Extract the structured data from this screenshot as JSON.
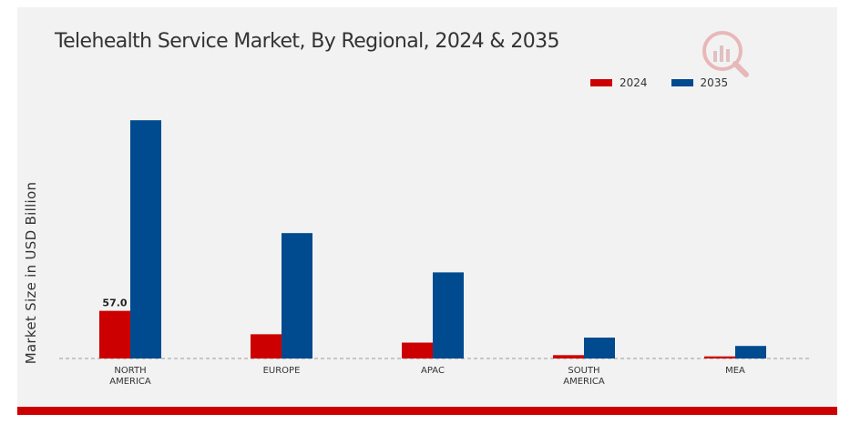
{
  "chart_data": {
    "type": "bar",
    "title": "Telehealth Service Market, By Regional, 2024 & 2035",
    "ylabel": "Market Size in USD Billion",
    "xlabel": "",
    "categories": [
      "NORTH\nAMERICA",
      "EUROPE",
      "APAC",
      "SOUTH\nAMERICA",
      "MEA"
    ],
    "series": [
      {
        "name": "2024",
        "color": "#cc0000",
        "values": [
          57.0,
          29.0,
          19.0,
          4.0,
          2.5
        ]
      },
      {
        "name": "2035",
        "color": "#004a8f",
        "values": [
          285.0,
          150.0,
          103.0,
          25.0,
          15.0
        ]
      }
    ],
    "data_labels": [
      {
        "series": "2024",
        "category_index": 0,
        "text": "57.0"
      }
    ],
    "legend_position": "top-right",
    "grid": false,
    "ylim": [
      0,
      320
    ]
  },
  "colors": {
    "accent": "#cc0000",
    "panel": "#f2f2f2"
  },
  "icons": {
    "logo": "mrfr-logo-icon"
  }
}
